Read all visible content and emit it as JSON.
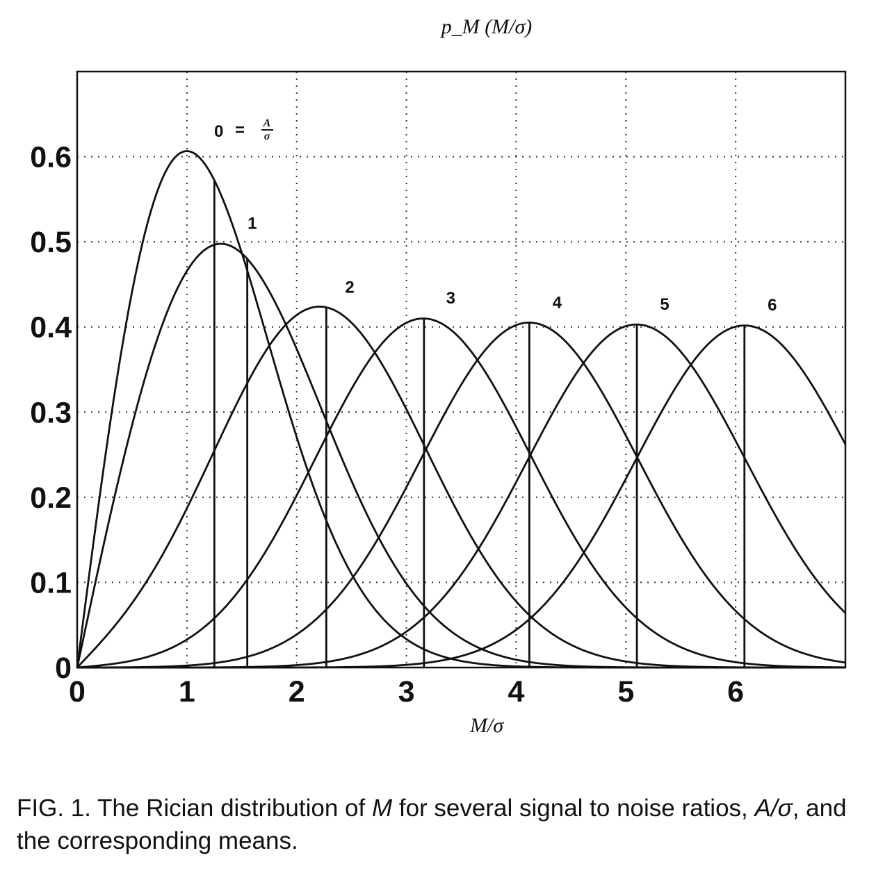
{
  "chart_data": {
    "type": "line",
    "title": "p_M (M/σ)",
    "xlabel": "M/σ",
    "ylabel": "p_M (M/σ)",
    "xlim": [
      0,
      7
    ],
    "ylim": [
      0,
      0.7
    ],
    "xticks": [
      "0",
      "1",
      "2",
      "3",
      "4",
      "5",
      "6"
    ],
    "yticks": [
      "0",
      "0.1",
      "0.2",
      "0.3",
      "0.4",
      "0.5",
      "0.6"
    ],
    "grid": true,
    "grid_style": "dotted",
    "distribution": "rician",
    "series": [
      {
        "name": "0",
        "snr": 0,
        "peak_x": 1.0,
        "peak_y": 0.607,
        "mean": 1.25
      },
      {
        "name": "1",
        "snr": 1,
        "peak_x": 1.31,
        "peak_y": 0.499,
        "mean": 1.55
      },
      {
        "name": "2",
        "snr": 2,
        "peak_x": 2.23,
        "peak_y": 0.424,
        "mean": 2.27
      },
      {
        "name": "3",
        "snr": 3,
        "peak_x": 3.15,
        "peak_y": 0.411,
        "mean": 3.16
      },
      {
        "name": "4",
        "snr": 4,
        "peak_x": 4.12,
        "peak_y": 0.406,
        "mean": 4.12
      },
      {
        "name": "5",
        "snr": 5,
        "peak_x": 5.1,
        "peak_y": 0.404,
        "mean": 5.1
      },
      {
        "name": "6",
        "snr": 6,
        "peak_x": 6.08,
        "peak_y": 0.403,
        "mean": 6.08
      }
    ],
    "label_equation": {
      "lhs": "0",
      "eq": "=",
      "num": "A",
      "den": "σ"
    }
  },
  "caption": {
    "prefix": "FIG. 1. The Rician distribution of ",
    "var_m": "M",
    "middle": " for several signal to noise ratios, ",
    "var_ratio": "A/σ",
    "suffix": ", and the corresponding means."
  },
  "colors": {
    "line": "#111111",
    "grid": "#333333",
    "background": "#ffffff"
  }
}
